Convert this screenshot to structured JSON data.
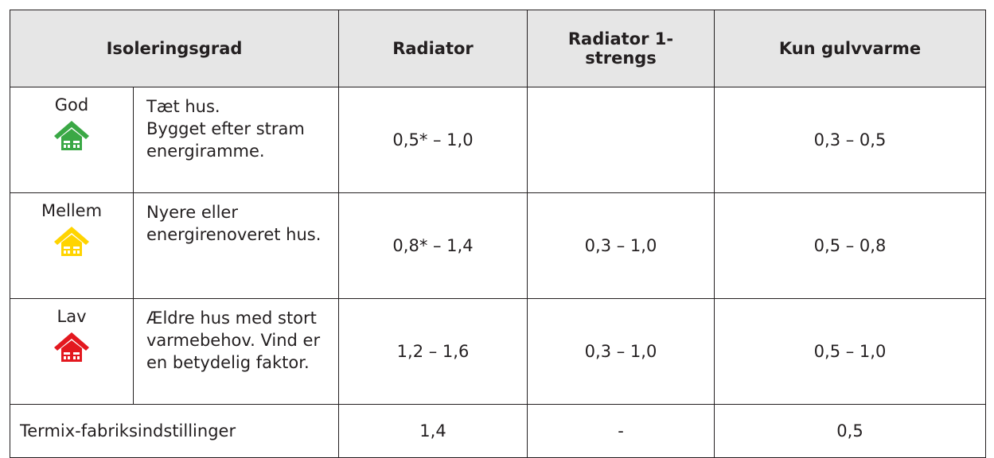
{
  "table": {
    "header": {
      "level": "Isoleringsgrad",
      "columns": [
        "Radiator",
        "Radiator 1-strengs",
        "Kun gulvvarme"
      ]
    },
    "rows": [
      {
        "level": "God",
        "icon_color": "#3aa845",
        "description": [
          "Tæt hus.",
          "Bygget efter stram energiramme."
        ],
        "values": [
          "0,5* – 1,0",
          null,
          "0,3 – 0,5"
        ]
      },
      {
        "level": "Mellem",
        "icon_color": "#ffd400",
        "description": [
          "Nyere eller energirenoveret hus."
        ],
        "values": [
          "0,8* – 1,4",
          "0,3 – 1,0",
          "0,5 – 0,8"
        ]
      },
      {
        "level": "Lav",
        "icon_color": "#e3181f",
        "description": [
          "Ældre hus med stort varmebehov. Vind er en betydelig faktor."
        ],
        "values": [
          "1,2 – 1,6",
          "0,3 – 1,0",
          "0,5 – 1,0"
        ]
      }
    ],
    "footer": {
      "label": "Termix-fabriksindstillinger",
      "values": [
        "1,4",
        "-",
        "0,5"
      ]
    }
  }
}
